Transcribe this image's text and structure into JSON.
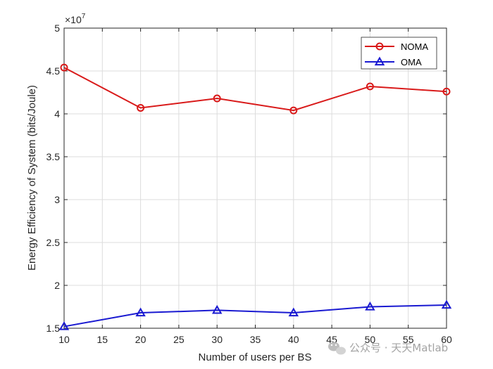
{
  "chart_data": {
    "type": "line",
    "title": "",
    "xlabel": "Number of users per BS",
    "ylabel": "Energy Efficiency of System (bits/Joule)",
    "x": [
      10,
      20,
      30,
      40,
      50,
      60
    ],
    "xlim": [
      10,
      60
    ],
    "ylim": [
      15000000,
      50000000
    ],
    "xticks": [
      10,
      15,
      20,
      25,
      30,
      35,
      40,
      45,
      50,
      55,
      60
    ],
    "yticks": [
      15000000,
      20000000,
      25000000,
      30000000,
      35000000,
      40000000,
      45000000,
      50000000
    ],
    "xtick_labels": [
      "10",
      "15",
      "20",
      "25",
      "30",
      "35",
      "40",
      "45",
      "50",
      "55",
      "60"
    ],
    "ytick_labels": [
      "1.5",
      "2",
      "2.5",
      "3",
      "3.5",
      "4",
      "4.5",
      "5"
    ],
    "y_exponent_base": "×10",
    "y_exponent_power": "7",
    "grid": true,
    "legend_position": "top-right",
    "series": [
      {
        "name": "NOMA",
        "color": "#d91a1a",
        "marker": "circle",
        "values": [
          45400000,
          40700000,
          41800000,
          40400000,
          43200000,
          42600000
        ]
      },
      {
        "name": "OMA",
        "color": "#1a1ad1",
        "marker": "triangle",
        "values": [
          15200000,
          16800000,
          17100000,
          16800000,
          17500000,
          17700000
        ]
      }
    ]
  },
  "watermark": {
    "text": "公众号 · 天天Matlab",
    "icon": "wechat-icon"
  }
}
